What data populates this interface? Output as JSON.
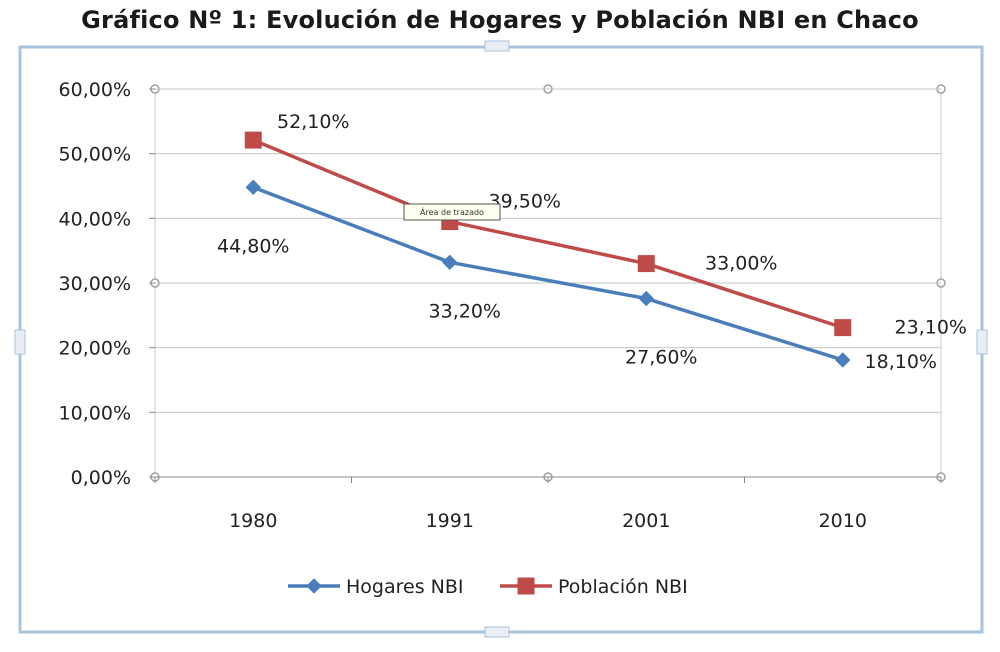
{
  "chart_data": {
    "type": "line",
    "title": "Gráfico Nº 1: Evolución de Hogares y Población NBI en Chaco",
    "categories": [
      "1980",
      "1991",
      "2001",
      "2010"
    ],
    "ylim": [
      0,
      60
    ],
    "ytick_values": [
      0,
      10,
      20,
      30,
      40,
      50,
      60
    ],
    "ytick_labels": [
      "0,00%",
      "10,00%",
      "20,00%",
      "30,00%",
      "40,00%",
      "50,00%",
      "60,00%"
    ],
    "grid": true,
    "legend_position": "bottom",
    "series": [
      {
        "name": "Hogares NBI",
        "color": "#4a7ebb",
        "marker": "diamond",
        "values": [
          44.8,
          33.2,
          27.6,
          18.1
        ],
        "labels": [
          "44,80%",
          "33,20%",
          "27,60%",
          "18,10%"
        ]
      },
      {
        "name": "Población NBI",
        "color": "#be4b48",
        "marker": "square",
        "values": [
          52.1,
          39.5,
          33.0,
          23.1
        ],
        "labels": [
          "52,10%",
          "39,50%",
          "33,00%",
          "23,10%"
        ]
      }
    ],
    "tooltip": "Área de trazado"
  }
}
